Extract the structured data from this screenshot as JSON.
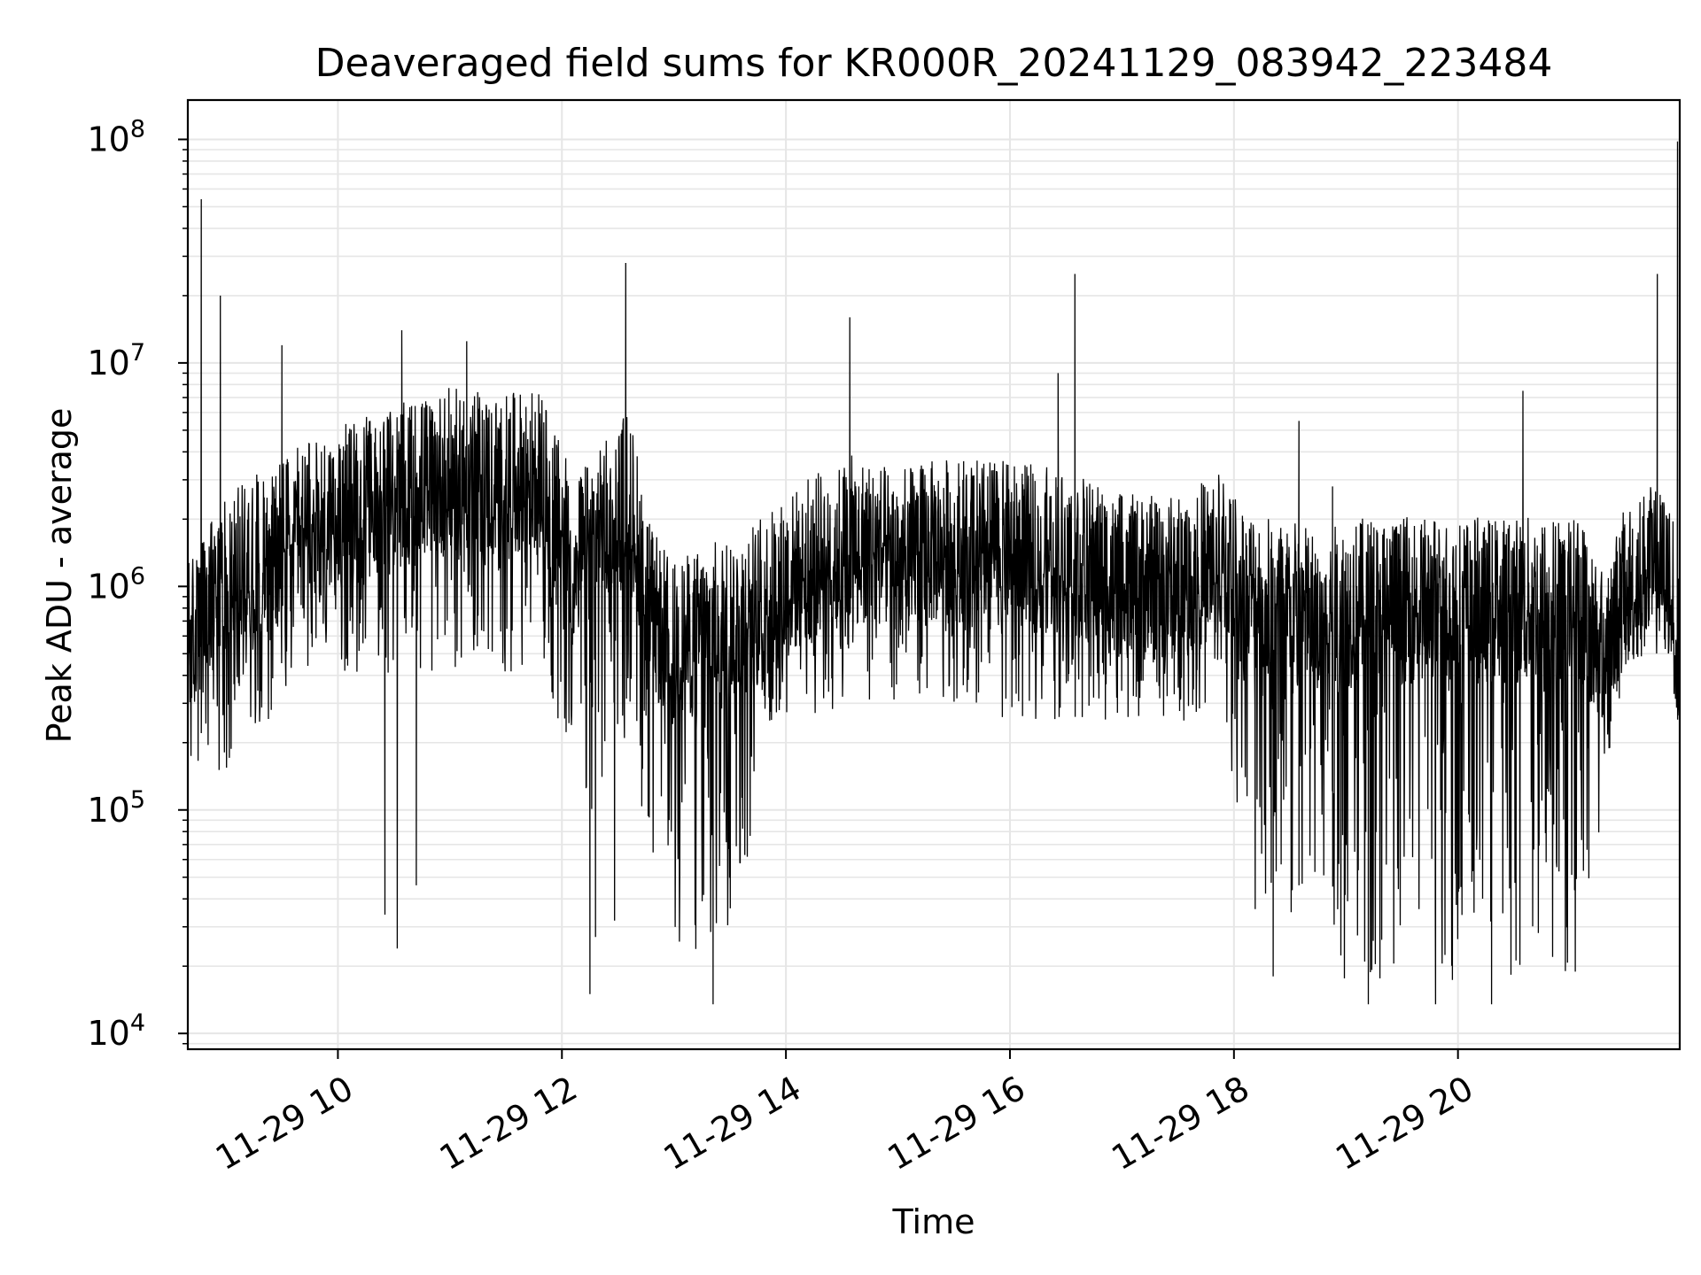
{
  "chart_data": {
    "type": "line",
    "title": "Deaveraged field sums for KR000R_20241129_083942_223484",
    "xlabel": "Time",
    "ylabel": "Peak ADU - average",
    "yscale": "log",
    "ylim": [
      8500,
      150000000
    ],
    "xlim_hours": [
      8.66,
      21.98
    ],
    "grid": true,
    "x_ticks": [
      {
        "label": "11-29 10",
        "hour": 10
      },
      {
        "label": "11-29 12",
        "hour": 12
      },
      {
        "label": "11-29 14",
        "hour": 14
      },
      {
        "label": "11-29 16",
        "hour": 16
      },
      {
        "label": "11-29 18",
        "hour": 18
      },
      {
        "label": "11-29 20",
        "hour": 20
      }
    ],
    "y_ticks": [
      {
        "base": "10",
        "exp": "4",
        "value": 10000
      },
      {
        "base": "10",
        "exp": "5",
        "value": 100000
      },
      {
        "base": "10",
        "exp": "6",
        "value": 1000000
      },
      {
        "base": "10",
        "exp": "7",
        "value": 10000000
      },
      {
        "base": "10",
        "exp": "8",
        "value": 100000000
      }
    ],
    "line_color": "#000000",
    "grid_color": "#e6e6e6",
    "envelope": {
      "hours": [
        8.66,
        9.0,
        9.5,
        10.0,
        10.5,
        11.0,
        11.5,
        11.8,
        12.1,
        12.3,
        12.6,
        12.8,
        13.0,
        13.3,
        13.6,
        13.8,
        14.2,
        14.6,
        15.0,
        15.5,
        16.0,
        16.5,
        17.0,
        17.5,
        17.9,
        18.1,
        18.4,
        18.8,
        19.2,
        19.6,
        20.0,
        20.4,
        20.8,
        21.1,
        21.3,
        21.5,
        21.7,
        21.9,
        21.98
      ],
      "typical": [
        500000,
        1000000,
        1500000,
        2000000,
        2500000,
        3000000,
        2800000,
        3000000,
        1200000,
        1500000,
        2500000,
        700000,
        500000,
        600000,
        700000,
        800000,
        1200000,
        1500000,
        1300000,
        1500000,
        1400000,
        1300000,
        1000000,
        1000000,
        1300000,
        900000,
        800000,
        700000,
        800000,
        800000,
        800000,
        800000,
        800000,
        800000,
        500000,
        900000,
        1100000,
        1000000,
        400000
      ],
      "low": [
        150000,
        150000,
        300000,
        400000,
        400000,
        400000,
        400000,
        500000,
        100000,
        100000,
        200000,
        60000,
        20000,
        20000,
        25000,
        200000,
        250000,
        300000,
        300000,
        300000,
        250000,
        250000,
        250000,
        250000,
        200000,
        60000,
        30000,
        18000,
        16000,
        16000,
        16000,
        16000,
        17000,
        18000,
        100000,
        500000,
        800000,
        700000,
        300000
      ]
    },
    "spikes": [
      {
        "hour": 8.78,
        "value": 54000000
      },
      {
        "hour": 8.95,
        "value": 20000000
      },
      {
        "hour": 9.5,
        "value": 12000000
      },
      {
        "hour": 10.57,
        "value": 14000000
      },
      {
        "hour": 11.15,
        "value": 12500000
      },
      {
        "hour": 12.57,
        "value": 28000000
      },
      {
        "hour": 14.57,
        "value": 16000000
      },
      {
        "hour": 16.58,
        "value": 25000000
      },
      {
        "hour": 16.43,
        "value": 9000000
      },
      {
        "hour": 18.58,
        "value": 5500000
      },
      {
        "hour": 18.88,
        "value": 2800000
      },
      {
        "hour": 20.58,
        "value": 7500000
      },
      {
        "hour": 21.78,
        "value": 25000000
      },
      {
        "hour": 21.96,
        "value": 98000000
      }
    ],
    "dips": [
      {
        "hour": 10.42,
        "value": 34000
      },
      {
        "hour": 10.53,
        "value": 24000
      },
      {
        "hour": 10.7,
        "value": 46000
      },
      {
        "hour": 12.25,
        "value": 15000
      },
      {
        "hour": 12.3,
        "value": 27000
      },
      {
        "hour": 12.47,
        "value": 32000
      },
      {
        "hour": 13.35,
        "value": 13500
      },
      {
        "hour": 18.19,
        "value": 36000
      },
      {
        "hour": 18.35,
        "value": 18000
      },
      {
        "hour": 19.2,
        "value": 13500
      },
      {
        "hour": 19.8,
        "value": 13500
      },
      {
        "hour": 20.3,
        "value": 13500
      }
    ]
  }
}
